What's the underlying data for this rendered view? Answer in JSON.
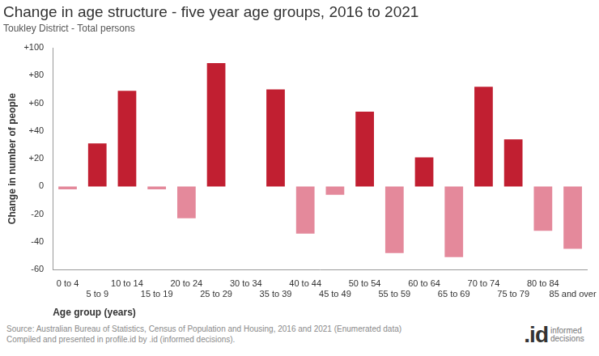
{
  "chart_data": {
    "type": "bar",
    "title": "Change in age structure - five year age groups, 2016 to 2021",
    "subtitle": "Toukley District - Total persons",
    "x_label": "Age group (years)",
    "y_label": "Change in number of people",
    "categories": [
      "0 to 4",
      "5 to 9",
      "10 to 14",
      "15 to 19",
      "20 to 24",
      "25 to 29",
      "30 to 34",
      "35 to 39",
      "40 to 44",
      "45 to 49",
      "50 to 54",
      "55 to 59",
      "60 to 64",
      "65 to 69",
      "70 to 74",
      "75 to 79",
      "80 to 84",
      "85 and over"
    ],
    "values": [
      -2,
      31,
      69,
      -2,
      -23,
      89,
      0,
      70,
      -34,
      -6,
      54,
      -48,
      21,
      -51,
      72,
      34,
      -32,
      -45
    ],
    "colors": [
      "#e4899b",
      "#c11f31",
      "#c11f31",
      "#e4899b",
      "#e4899b",
      "#c11f31",
      "#c11f31",
      "#c11f31",
      "#e4899b",
      "#e4899b",
      "#c11f31",
      "#e4899b",
      "#c11f31",
      "#e4899b",
      "#c11f31",
      "#c11f31",
      "#e4899b",
      "#e4899b"
    ],
    "ylim": [
      -60,
      100
    ],
    "yticks": [
      -60,
      -40,
      -20,
      0,
      {
        "value": 20,
        "label": "+20"
      },
      {
        "value": 40,
        "label": "+40"
      },
      {
        "value": 60,
        "label": "+60"
      },
      {
        "value": 80,
        "label": "+80"
      },
      {
        "value": 100,
        "label": "+100"
      }
    ],
    "grid": false,
    "source": [
      "Source: Australian Bureau of Statistics, Census of Population and Housing, 2016 and 2021 (Enumerated data)",
      "Compiled and presented in profile.id by .id (informed decisions)."
    ],
    "logo": [
      ".id",
      "informed decisions"
    ]
  }
}
